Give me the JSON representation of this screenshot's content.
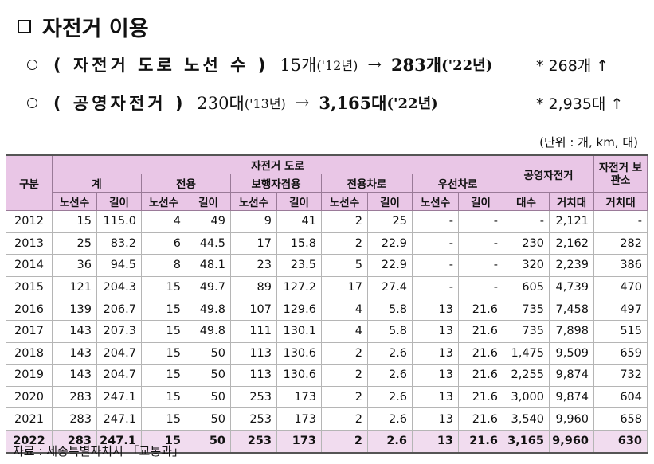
{
  "title": "자전거 이용",
  "bullets": [
    {
      "label": "( 자전거 도로 노선 수 )",
      "from_value": "15개",
      "from_year": "('12년)",
      "arrow": "→",
      "to_value": "283개",
      "to_year": "('22년)",
      "note": "* 268개 ↑"
    },
    {
      "label": "( 공영자전거 )",
      "from_value": "230대",
      "from_year": "('13년)",
      "arrow": "→",
      "to_value": "3,165대",
      "to_year": "('22년)",
      "note": "* 2,935대 ↑"
    }
  ],
  "unit": "(단위 : 개, km, 대)",
  "table": {
    "h_gubun": "구분",
    "h_bike_road": "자전거 도로",
    "h_public_bike": "공영자전거",
    "h_storage": "자전거 보관소",
    "groups": [
      "계",
      "전용",
      "보행자겸용",
      "전용차로",
      "우선차로"
    ],
    "sub_count": "노선수",
    "sub_length": "길이",
    "sub_units": "대수",
    "sub_racks": "거치대",
    "rows": [
      [
        "2012",
        "15",
        "115.0",
        "4",
        "49",
        "9",
        "41",
        "2",
        "25",
        "-",
        "-",
        "-",
        "2,121",
        "-"
      ],
      [
        "2013",
        "25",
        "83.2",
        "6",
        "44.5",
        "17",
        "15.8",
        "2",
        "22.9",
        "-",
        "-",
        "230",
        "2,162",
        "282"
      ],
      [
        "2014",
        "36",
        "94.5",
        "8",
        "48.1",
        "23",
        "23.5",
        "5",
        "22.9",
        "-",
        "-",
        "320",
        "2,239",
        "386"
      ],
      [
        "2015",
        "121",
        "204.3",
        "15",
        "49.7",
        "89",
        "127.2",
        "17",
        "27.4",
        "-",
        "-",
        "605",
        "4,739",
        "470"
      ],
      [
        "2016",
        "139",
        "206.7",
        "15",
        "49.8",
        "107",
        "129.6",
        "4",
        "5.8",
        "13",
        "21.6",
        "735",
        "7,458",
        "497"
      ],
      [
        "2017",
        "143",
        "207.3",
        "15",
        "49.8",
        "111",
        "130.1",
        "4",
        "5.8",
        "13",
        "21.6",
        "735",
        "7,898",
        "515"
      ],
      [
        "2018",
        "143",
        "204.7",
        "15",
        "50",
        "113",
        "130.6",
        "2",
        "2.6",
        "13",
        "21.6",
        "1,475",
        "9,509",
        "659"
      ],
      [
        "2019",
        "143",
        "204.7",
        "15",
        "50",
        "113",
        "130.6",
        "2",
        "2.6",
        "13",
        "21.6",
        "2,255",
        "9,874",
        "732"
      ],
      [
        "2020",
        "283",
        "247.1",
        "15",
        "50",
        "253",
        "173",
        "2",
        "2.6",
        "13",
        "21.6",
        "3,000",
        "9,874",
        "604"
      ],
      [
        "2021",
        "283",
        "247.1",
        "15",
        "50",
        "253",
        "173",
        "2",
        "2.6",
        "13",
        "21.6",
        "3,540",
        "9,960",
        "658"
      ],
      [
        "2022",
        "283",
        "247.1",
        "15",
        "50",
        "253",
        "173",
        "2",
        "2.6",
        "13",
        "21.6",
        "3,165",
        "9,960",
        "630"
      ]
    ]
  },
  "source": "자료 : 세종특별자치시 「교통과」"
}
